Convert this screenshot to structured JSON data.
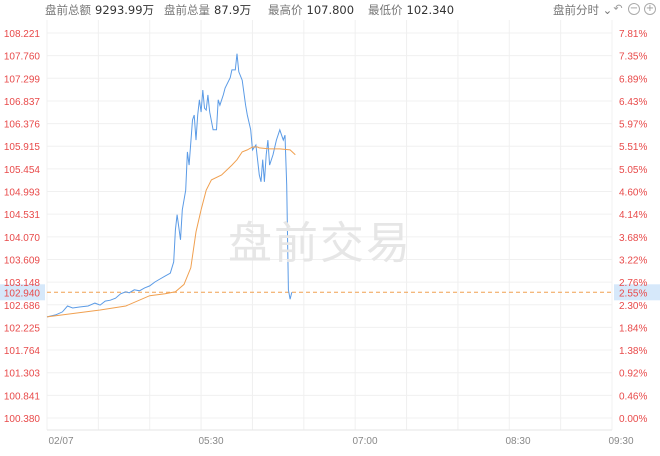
{
  "header": {
    "items": [
      {
        "label": "盘前总额",
        "value": "9293.99万"
      },
      {
        "label": "盘前总量",
        "value": "87.9万"
      },
      {
        "label": "最高价",
        "value": "107.800"
      },
      {
        "label": "最低价",
        "value": "102.340"
      }
    ],
    "mode_select": "盘前分时",
    "icons": [
      "undo-icon",
      "zoom-out-icon",
      "zoom-in-icon"
    ]
  },
  "watermark": "盘前交易",
  "chart_data": {
    "type": "line",
    "x_axis": {
      "range": [
        "04:00",
        "09:30"
      ],
      "tick_labels": [
        "02/07",
        "05:30",
        "07:00",
        "08:30",
        "09:30"
      ]
    },
    "y_axis_left": {
      "range": [
        100.38,
        108.221
      ],
      "tick_labels": [
        "108.221",
        "107.760",
        "107.299",
        "106.837",
        "106.376",
        "105.915",
        "105.454",
        "104.993",
        "104.531",
        "104.070",
        "103.609",
        "103.148",
        "102.686",
        "102.225",
        "101.764",
        "101.303",
        "100.841",
        "100.380"
      ]
    },
    "y_axis_right": {
      "tick_labels": [
        "7.81%",
        "7.35%",
        "6.89%",
        "6.43%",
        "5.97%",
        "5.51%",
        "5.05%",
        "4.60%",
        "4.14%",
        "3.68%",
        "3.22%",
        "2.76%",
        "2.30%",
        "1.84%",
        "1.38%",
        "0.92%",
        "0.46%",
        "0.00%"
      ]
    },
    "current": {
      "price": "102.940",
      "pct": "2.55%",
      "value": 102.94
    },
    "grid": true,
    "colors": {
      "price": "#5b9be6",
      "avg": "#f0a050",
      "current_line": "#f0a050",
      "up_text": "#e84a4a",
      "axis_text": "#888888",
      "highlight": "#d6e8fa"
    },
    "series": [
      {
        "key": "price",
        "points": [
          [
            "04:00",
            102.44
          ],
          [
            "04:05",
            102.48
          ],
          [
            "04:09",
            102.54
          ],
          [
            "04:12",
            102.66
          ],
          [
            "04:15",
            102.62
          ],
          [
            "04:19",
            102.64
          ],
          [
            "04:24",
            102.66
          ],
          [
            "04:28",
            102.72
          ],
          [
            "04:31",
            102.68
          ],
          [
            "04:34",
            102.76
          ],
          [
            "04:37",
            102.78
          ],
          [
            "04:40",
            102.82
          ],
          [
            "04:43",
            102.91
          ],
          [
            "04:46",
            102.95
          ],
          [
            "04:48",
            102.93
          ],
          [
            "04:51",
            102.99
          ],
          [
            "04:54",
            102.97
          ],
          [
            "04:57",
            103.03
          ],
          [
            "05:00",
            103.07
          ],
          [
            "05:03",
            103.15
          ],
          [
            "05:06",
            103.21
          ],
          [
            "05:09",
            103.27
          ],
          [
            "05:12",
            103.33
          ],
          [
            "05:14",
            103.56
          ],
          [
            "05:15",
            104.21
          ],
          [
            "05:16",
            104.52
          ],
          [
            "05:18",
            104.01
          ],
          [
            "05:19",
            104.62
          ],
          [
            "05:21",
            105.02
          ],
          [
            "05:22",
            105.8
          ],
          [
            "05:23",
            105.53
          ],
          [
            "05:25",
            106.45
          ],
          [
            "05:26",
            106.55
          ],
          [
            "05:27",
            106.04
          ],
          [
            "05:28",
            106.55
          ],
          [
            "05:29",
            106.86
          ],
          [
            "05:30",
            106.61
          ],
          [
            "05:31",
            107.06
          ],
          [
            "05:32",
            106.69
          ],
          [
            "05:33",
            106.65
          ],
          [
            "05:34",
            106.96
          ],
          [
            "05:35",
            106.61
          ],
          [
            "05:37",
            106.25
          ],
          [
            "05:39",
            106.25
          ],
          [
            "05:40",
            106.86
          ],
          [
            "05:41",
            106.75
          ],
          [
            "05:43",
            106.96
          ],
          [
            "05:44",
            107.1
          ],
          [
            "05:47",
            107.31
          ],
          [
            "05:48",
            107.47
          ],
          [
            "05:50",
            107.47
          ],
          [
            "05:51",
            107.8
          ],
          [
            "05:52",
            107.43
          ],
          [
            "05:54",
            107.26
          ],
          [
            "05:56",
            106.75
          ],
          [
            "05:57",
            106.55
          ],
          [
            "05:59",
            106.25
          ],
          [
            "06:00",
            105.84
          ],
          [
            "06:02",
            105.94
          ],
          [
            "06:04",
            105.33
          ],
          [
            "06:05",
            105.19
          ],
          [
            "06:06",
            105.64
          ],
          [
            "06:07",
            105.19
          ],
          [
            "06:08",
            105.74
          ],
          [
            "06:09",
            106.04
          ],
          [
            "06:10",
            105.53
          ],
          [
            "06:12",
            105.74
          ],
          [
            "06:14",
            106.04
          ],
          [
            "06:16",
            106.25
          ],
          [
            "06:17",
            106.14
          ],
          [
            "06:18",
            106.04
          ],
          [
            "06:19",
            106.14
          ],
          [
            "06:20",
            105.13
          ],
          [
            "06:21",
            102.99
          ],
          [
            "06:22",
            102.8
          ],
          [
            "06:23",
            102.94
          ]
        ]
      },
      {
        "key": "avg",
        "points": [
          [
            "04:00",
            102.44
          ],
          [
            "04:31",
            102.58
          ],
          [
            "04:46",
            102.66
          ],
          [
            "05:00",
            102.87
          ],
          [
            "05:09",
            102.91
          ],
          [
            "05:15",
            102.95
          ],
          [
            "05:20",
            103.1
          ],
          [
            "05:24",
            103.44
          ],
          [
            "05:27",
            104.17
          ],
          [
            "05:30",
            104.62
          ],
          [
            "05:33",
            105.02
          ],
          [
            "05:36",
            105.23
          ],
          [
            "05:42",
            105.33
          ],
          [
            "05:48",
            105.53
          ],
          [
            "05:51",
            105.64
          ],
          [
            "05:54",
            105.8
          ],
          [
            "05:57",
            105.84
          ],
          [
            "06:00",
            105.9
          ],
          [
            "06:03",
            105.9
          ],
          [
            "06:04",
            105.88
          ],
          [
            "06:10",
            105.86
          ],
          [
            "06:16",
            105.86
          ],
          [
            "06:22",
            105.84
          ],
          [
            "06:25",
            105.74
          ]
        ]
      }
    ]
  }
}
